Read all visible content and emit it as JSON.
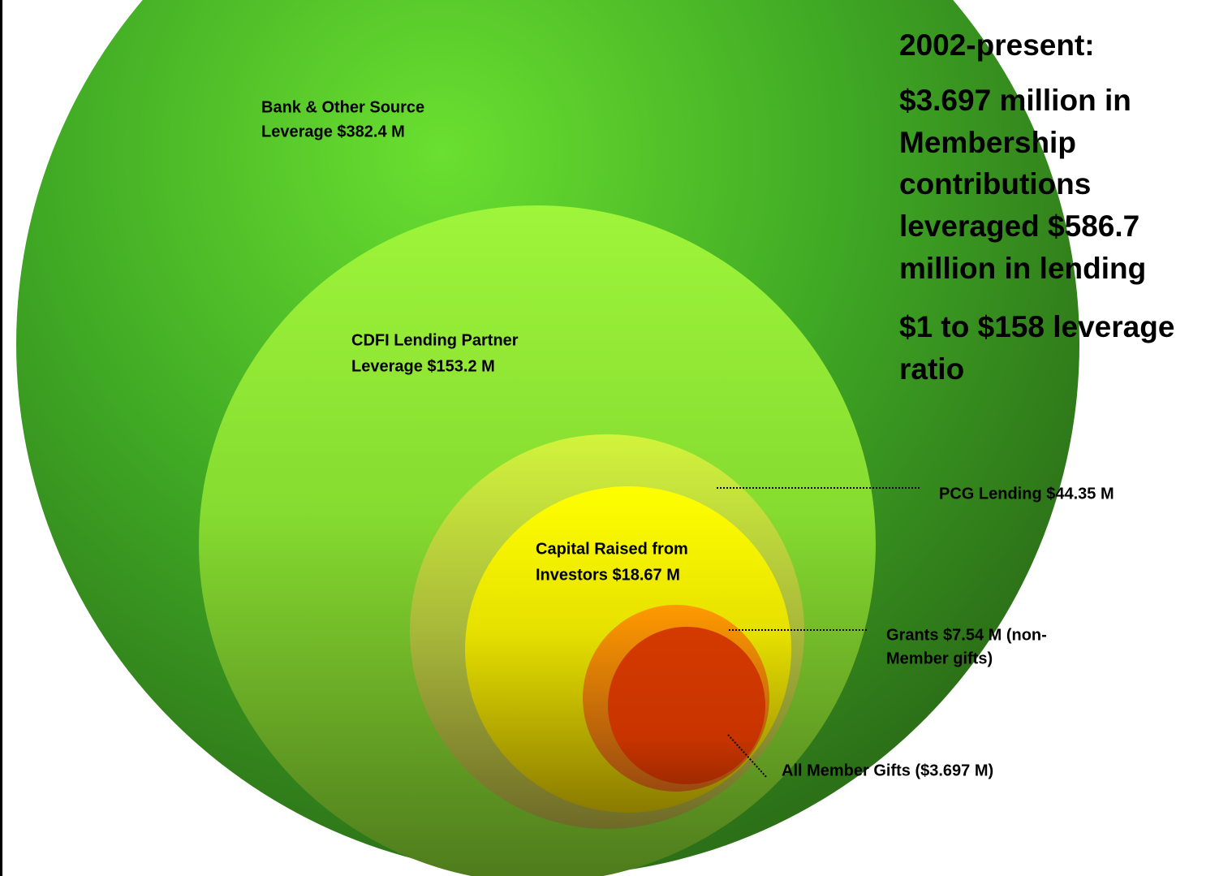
{
  "circles": [
    {
      "label": [
        "Bank & Other Source",
        "Leverage $382.4 M"
      ]
    },
    {
      "label": [
        "CDFI Lending Partner",
        "Leverage $153.2 M"
      ]
    },
    {
      "label": [
        "PCG Lending $44.35 M"
      ]
    },
    {
      "label": [
        "Capital Raised from",
        "Investors $18.67 M"
      ]
    },
    {
      "label": [
        "Grants $7.54 M (non-",
        "Member gifts)"
      ]
    },
    {
      "label": [
        "All Member Gifts ($3.697 M)"
      ]
    }
  ],
  "summary": {
    "heading": "2002-present:",
    "paragraph1": [
      "$3.697 million in",
      "Membership",
      "contributions",
      "leveraged $586.7",
      "million in lending"
    ],
    "paragraph2": [
      "$1 to $158 leverage",
      "ratio"
    ]
  }
}
